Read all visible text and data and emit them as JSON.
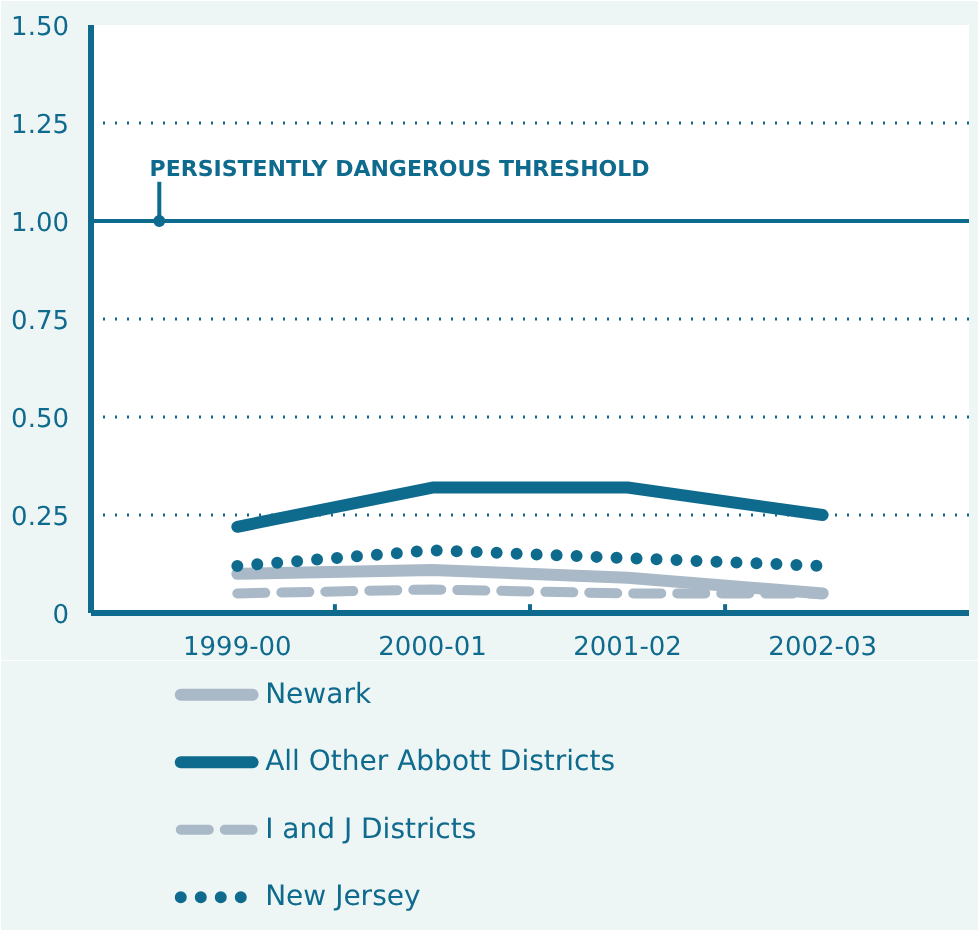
{
  "chart_data": {
    "type": "line",
    "categories": [
      "1999-00",
      "2000-01",
      "2001-02",
      "2002-03"
    ],
    "series": [
      {
        "name": "Newark",
        "color": "#a9b9c7",
        "values": [
          0.1,
          0.11,
          0.09,
          0.05
        ],
        "line_style": "solid"
      },
      {
        "name": "All Other Abbott Districts",
        "color": "#0f6b8e",
        "values": [
          0.22,
          0.32,
          0.32,
          0.25
        ],
        "line_style": "solid"
      },
      {
        "name": "I and J Districts",
        "color": "#a9b9c7",
        "values": [
          0.05,
          0.06,
          0.05,
          0.05
        ],
        "line_style": "dashed"
      },
      {
        "name": "New Jersey",
        "color": "#0f6b8e",
        "values": [
          0.12,
          0.16,
          0.14,
          0.12
        ],
        "line_style": "dotted"
      }
    ],
    "ylim": [
      0,
      1.5
    ],
    "yticks": [
      0,
      0.25,
      {
        "value": 0.5,
        "label": "0.50"
      },
      0.75,
      {
        "value": 1,
        "label": "1.00"
      },
      1.25,
      {
        "value": 1.5,
        "label": "1.50"
      }
    ],
    "grid": "y",
    "legend": "bottom",
    "marker": "none",
    "ref_lines": [
      {
        "axis": "y",
        "value": 1.0,
        "label": "PERSISTENTLY DANGEROUS THRESHOLD",
        "color": "#0f6b8e",
        "line_style": "solid"
      }
    ]
  }
}
